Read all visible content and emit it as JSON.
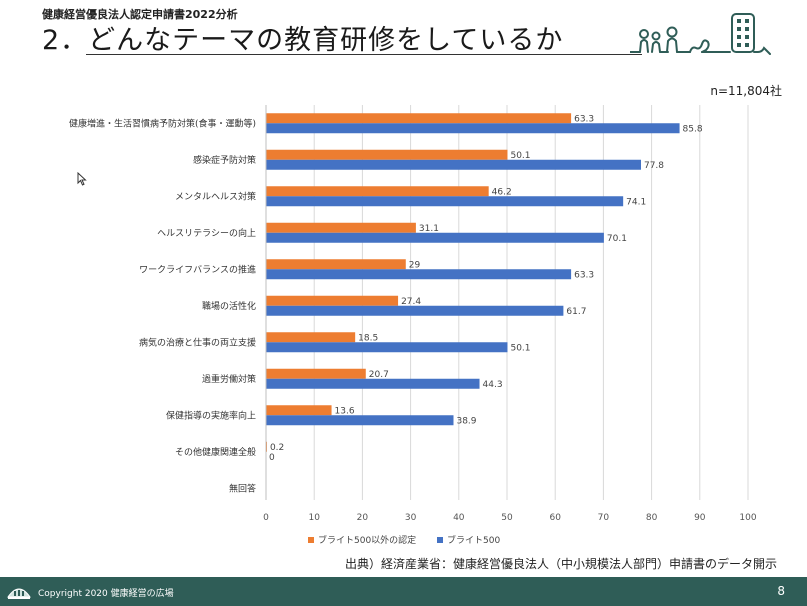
{
  "header": {
    "subtitle": "健康経営優良法人認定申請書2022分析",
    "title": "2．どんなテーマの教育研修をしているか"
  },
  "sample_size": "n=11,804社",
  "colors": {
    "series1": "#ED7D31",
    "series2": "#4472C4",
    "footer": "#2f5d57",
    "grid": "#d9d9d9"
  },
  "chart_data": {
    "type": "bar",
    "orientation": "horizontal",
    "categories": [
      "健康増進・生活習慣病予防対策(食事・運動等)",
      "感染症予防対策",
      "メンタルヘルス対策",
      "ヘルスリテラシーの向上",
      "ワークライフバランスの推進",
      "職場の活性化",
      "病気の治療と仕事の両立支援",
      "過重労働対策",
      "保健指導の実施率向上",
      "その他健康関連全般",
      "無回答"
    ],
    "series": [
      {
        "name": "ブライト500以外の認定",
        "color": "#ED7D31",
        "values": [
          63.3,
          50.1,
          46.2,
          31.1,
          29,
          27.4,
          18.5,
          20.7,
          13.6,
          0.2,
          null
        ]
      },
      {
        "name": "ブライト500",
        "color": "#4472C4",
        "values": [
          85.8,
          77.8,
          74.1,
          70.1,
          63.3,
          61.7,
          50.1,
          44.3,
          38.9,
          0,
          null
        ]
      }
    ],
    "xlim": [
      0,
      100
    ],
    "xticks": [
      "0",
      "10",
      "20",
      "30",
      "40",
      "50",
      "60",
      "70",
      "80",
      "90",
      "100"
    ],
    "grid": true,
    "legend_position": "bottom"
  },
  "source": "出典）経済産業省：健康経営優良法人（中小規模法人部門）申請書のデータ開示",
  "footer": {
    "copyright": "Copyright 2020 健康経営の広場",
    "page": "8"
  }
}
